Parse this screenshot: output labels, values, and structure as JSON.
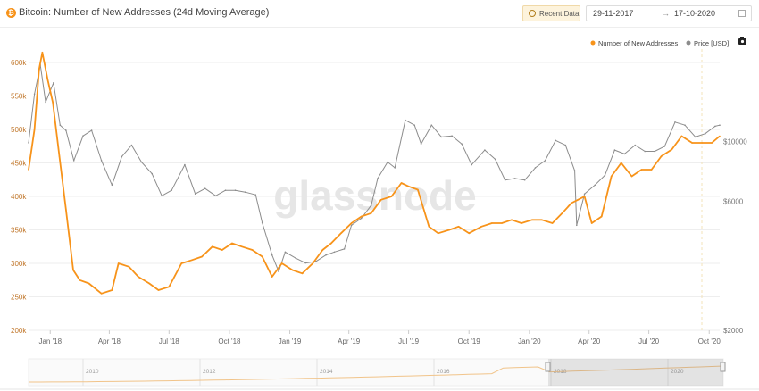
{
  "header": {
    "title": "Bitcoin: Number of New Addresses (24d Moving Average)",
    "recent_button": "Recent Data",
    "date_start": "29-11-2017",
    "date_arrow": "→",
    "date_end": "17-10-2020",
    "icons": [
      "bitcoin-icon",
      "clock-icon",
      "calendar-icon",
      "camera-icon"
    ]
  },
  "watermark": "glassnode",
  "colors": {
    "addresses": "#f7931a",
    "price": "#8c8c8c",
    "grid": "#eeeeee",
    "left_axis": "#c0762a"
  },
  "chart_data": {
    "type": "line",
    "title": "Bitcoin: Number of New Addresses (24d Moving Average)",
    "x_range": [
      "2017-11-29",
      "2020-10-17"
    ],
    "x_ticks": [
      "Jan '18",
      "Apr '18",
      "Jul '18",
      "Oct '18",
      "Jan '19",
      "Apr '19",
      "Jul '19",
      "Oct '19",
      "Jan '20",
      "Apr '20",
      "Jul '20",
      "Oct '20"
    ],
    "x_tick_dates": [
      "2018-01-01",
      "2018-04-01",
      "2018-07-01",
      "2018-10-01",
      "2019-01-01",
      "2019-04-01",
      "2019-07-01",
      "2019-10-01",
      "2020-01-01",
      "2020-04-01",
      "2020-07-01",
      "2020-10-01"
    ],
    "y_left": {
      "label": "",
      "ticks": [
        "200k",
        "250k",
        "300k",
        "350k",
        "400k",
        "450k",
        "500k",
        "550k",
        "600k"
      ],
      "range": [
        200000,
        620000
      ]
    },
    "y_right": {
      "label": "",
      "scale": "log",
      "ticks": [
        "$2000",
        "$6000",
        "$10000"
      ],
      "tick_values": [
        2000,
        6000,
        10000
      ],
      "range": [
        2000,
        22000
      ]
    },
    "legend_position": "top-right",
    "grid": true,
    "series": [
      {
        "name": "Number of New Addresses",
        "axis": "left",
        "x": [
          "2017-11-29",
          "2017-12-08",
          "2017-12-15",
          "2017-12-20",
          "2017-12-28",
          "2018-01-05",
          "2018-01-15",
          "2018-01-25",
          "2018-02-05",
          "2018-02-15",
          "2018-03-01",
          "2018-03-20",
          "2018-04-05",
          "2018-04-15",
          "2018-05-01",
          "2018-05-15",
          "2018-06-01",
          "2018-06-15",
          "2018-07-01",
          "2018-07-20",
          "2018-08-05",
          "2018-08-20",
          "2018-09-05",
          "2018-09-20",
          "2018-10-05",
          "2018-10-20",
          "2018-11-05",
          "2018-11-20",
          "2018-12-05",
          "2018-12-20",
          "2019-01-05",
          "2019-01-20",
          "2019-02-05",
          "2019-02-20",
          "2019-03-05",
          "2019-03-20",
          "2019-04-05",
          "2019-04-20",
          "2019-05-05",
          "2019-05-20",
          "2019-06-05",
          "2019-06-20",
          "2019-07-01",
          "2019-07-15",
          "2019-08-01",
          "2019-08-15",
          "2019-09-01",
          "2019-09-15",
          "2019-10-01",
          "2019-10-20",
          "2019-11-05",
          "2019-11-20",
          "2019-12-05",
          "2019-12-20",
          "2020-01-05",
          "2020-01-20",
          "2020-02-05",
          "2020-02-20",
          "2020-03-05",
          "2020-03-15",
          "2020-03-25",
          "2020-04-05",
          "2020-04-20",
          "2020-05-05",
          "2020-05-20",
          "2020-06-05",
          "2020-06-20",
          "2020-07-05",
          "2020-07-20",
          "2020-08-05",
          "2020-08-20",
          "2020-09-05",
          "2020-09-20",
          "2020-10-05",
          "2020-10-17"
        ],
        "y": [
          440000,
          500000,
          590000,
          615000,
          575000,
          540000,
          460000,
          380000,
          290000,
          275000,
          270000,
          255000,
          260000,
          300000,
          295000,
          280000,
          270000,
          260000,
          265000,
          300000,
          305000,
          310000,
          325000,
          320000,
          330000,
          325000,
          320000,
          310000,
          280000,
          300000,
          290000,
          285000,
          300000,
          320000,
          330000,
          345000,
          360000,
          370000,
          375000,
          395000,
          400000,
          420000,
          415000,
          410000,
          355000,
          345000,
          350000,
          355000,
          345000,
          355000,
          360000,
          360000,
          365000,
          360000,
          365000,
          365000,
          360000,
          375000,
          390000,
          395000,
          400000,
          360000,
          370000,
          430000,
          450000,
          430000,
          440000,
          440000,
          460000,
          470000,
          490000,
          480000,
          480000,
          480000,
          490000
        ]
      },
      {
        "name": "Price [USD]",
        "axis": "right",
        "x": [
          "2017-11-29",
          "2017-12-08",
          "2017-12-17",
          "2017-12-25",
          "2018-01-06",
          "2018-01-16",
          "2018-01-25",
          "2018-02-06",
          "2018-02-20",
          "2018-03-05",
          "2018-03-20",
          "2018-04-05",
          "2018-04-20",
          "2018-05-05",
          "2018-05-20",
          "2018-06-05",
          "2018-06-20",
          "2018-07-05",
          "2018-07-25",
          "2018-08-10",
          "2018-08-25",
          "2018-09-10",
          "2018-09-25",
          "2018-10-10",
          "2018-10-25",
          "2018-11-10",
          "2018-11-20",
          "2018-12-05",
          "2018-12-15",
          "2018-12-25",
          "2019-01-10",
          "2019-01-25",
          "2019-02-10",
          "2019-02-25",
          "2019-03-10",
          "2019-03-25",
          "2019-04-05",
          "2019-04-20",
          "2019-05-05",
          "2019-05-15",
          "2019-05-30",
          "2019-06-10",
          "2019-06-26",
          "2019-07-10",
          "2019-07-20",
          "2019-08-05",
          "2019-08-20",
          "2019-09-05",
          "2019-09-20",
          "2019-10-05",
          "2019-10-25",
          "2019-11-10",
          "2019-11-25",
          "2019-12-10",
          "2019-12-25",
          "2020-01-10",
          "2020-01-25",
          "2020-02-10",
          "2020-02-25",
          "2020-03-10",
          "2020-03-13",
          "2020-03-25",
          "2020-04-10",
          "2020-04-25",
          "2020-05-10",
          "2020-05-25",
          "2020-06-10",
          "2020-06-25",
          "2020-07-10",
          "2020-07-25",
          "2020-08-10",
          "2020-08-25",
          "2020-09-10",
          "2020-09-25",
          "2020-10-10",
          "2020-10-17"
        ],
        "y": [
          9900,
          15000,
          19200,
          14000,
          16500,
          11500,
          11000,
          8500,
          10500,
          11000,
          8500,
          6900,
          8800,
          9700,
          8400,
          7600,
          6300,
          6600,
          8200,
          6400,
          6700,
          6300,
          6600,
          6600,
          6500,
          6350,
          5000,
          3800,
          3300,
          3900,
          3700,
          3550,
          3600,
          3800,
          3900,
          4000,
          4900,
          5200,
          5800,
          7300,
          8400,
          8000,
          12000,
          11500,
          9800,
          11500,
          10400,
          10500,
          9800,
          8200,
          9300,
          8600,
          7200,
          7300,
          7200,
          8000,
          8500,
          10100,
          9700,
          7800,
          4900,
          6400,
          6900,
          7500,
          9300,
          9000,
          9700,
          9200,
          9200,
          9600,
          11800,
          11500,
          10400,
          10700,
          11400,
          11500
        ]
      }
    ],
    "navigator": {
      "ticks": [
        "2010",
        "2012",
        "2014",
        "2016",
        "2018",
        "2020"
      ]
    }
  }
}
